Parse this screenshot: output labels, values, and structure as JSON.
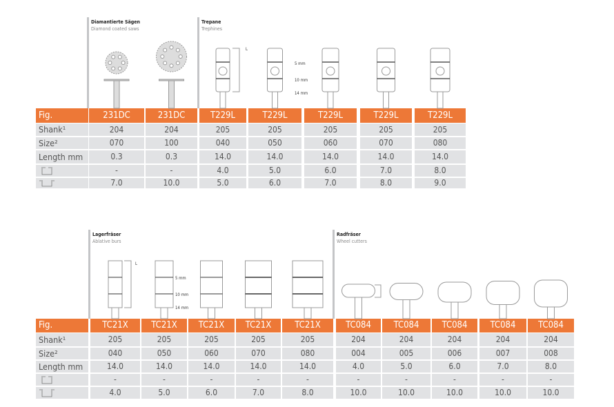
{
  "tables": [
    {
      "row_labels": [
        "Fig.",
        "Shank¹",
        "Size²",
        "Length mm",
        "",
        ""
      ],
      "sections": [
        {
          "de": "Diamantierte Sägen",
          "en": "Diamond coated saws"
        },
        {
          "de": "Trepane",
          "en": "Trephines"
        }
      ],
      "dim_labels": [
        "L",
        "5 mm",
        "10 mm",
        "14 mm"
      ],
      "columns": [
        {
          "fig": "231DC",
          "shank": "204",
          "size": "070",
          "length": "0.3",
          "d1": "-",
          "d2": "7.0",
          "shape": "saw"
        },
        {
          "fig": "231DC",
          "shank": "204",
          "size": "100",
          "length": "0.3",
          "d1": "-",
          "d2": "10.0",
          "shape": "saw"
        },
        {
          "fig": "T229L",
          "shank": "205",
          "size": "040",
          "length": "14.0",
          "d1": "4.0",
          "d2": "5.0",
          "shape": "trephine"
        },
        {
          "fig": "T229L",
          "shank": "205",
          "size": "050",
          "length": "14.0",
          "d1": "5.0",
          "d2": "6.0",
          "shape": "trephine"
        },
        {
          "fig": "T229L",
          "shank": "205",
          "size": "060",
          "length": "14.0",
          "d1": "6.0",
          "d2": "7.0",
          "shape": "trephine"
        },
        {
          "fig": "T229L",
          "shank": "205",
          "size": "070",
          "length": "14.0",
          "d1": "7.0",
          "d2": "8.0",
          "shape": "trephine"
        },
        {
          "fig": "T229L",
          "shank": "205",
          "size": "080",
          "length": "14.0",
          "d1": "8.0",
          "d2": "9.0",
          "shape": "trephine"
        }
      ]
    },
    {
      "row_labels": [
        "Fig.",
        "Shank¹",
        "Size²",
        "Length mm",
        "",
        ""
      ],
      "sections": [
        {
          "de": "Lagerfräser",
          "en": "Ablative burs"
        },
        {
          "de": "Radfräser",
          "en": "Wheel cutters"
        }
      ],
      "dim_labels": [
        "L",
        "5 mm",
        "10 mm",
        "14 mm"
      ],
      "columns": [
        {
          "fig": "TC21X",
          "shank": "205",
          "size": "040",
          "length": "14.0",
          "d1": "-",
          "d2": "4.0",
          "shape": "bur"
        },
        {
          "fig": "TC21X",
          "shank": "205",
          "size": "050",
          "length": "14.0",
          "d1": "-",
          "d2": "5.0",
          "shape": "bur"
        },
        {
          "fig": "TC21X",
          "shank": "205",
          "size": "060",
          "length": "14.0",
          "d1": "-",
          "d2": "6.0",
          "shape": "bur"
        },
        {
          "fig": "TC21X",
          "shank": "205",
          "size": "070",
          "length": "14.0",
          "d1": "-",
          "d2": "7.0",
          "shape": "bur"
        },
        {
          "fig": "TC21X",
          "shank": "205",
          "size": "080",
          "length": "14.0",
          "d1": "-",
          "d2": "8.0",
          "shape": "bur"
        },
        {
          "fig": "TC084",
          "shank": "204",
          "size": "004",
          "length": "4.0",
          "d1": "-",
          "d2": "10.0",
          "shape": "wheel"
        },
        {
          "fig": "TC084",
          "shank": "204",
          "size": "005",
          "length": "5.0",
          "d1": "-",
          "d2": "10.0",
          "shape": "wheel"
        },
        {
          "fig": "TC084",
          "shank": "204",
          "size": "006",
          "length": "6.0",
          "d1": "-",
          "d2": "10.0",
          "shape": "wheel"
        },
        {
          "fig": "TC084",
          "shank": "204",
          "size": "007",
          "length": "7.0",
          "d1": "-",
          "d2": "10.0",
          "shape": "wheel"
        },
        {
          "fig": "TC084",
          "shank": "204",
          "size": "008",
          "length": "8.0",
          "d1": "-",
          "d2": "10.0",
          "shape": "wheel"
        }
      ]
    }
  ],
  "colors": {
    "header": "#ed7837",
    "row": "#e1e2e4",
    "divider": "#c4c5c7"
  }
}
